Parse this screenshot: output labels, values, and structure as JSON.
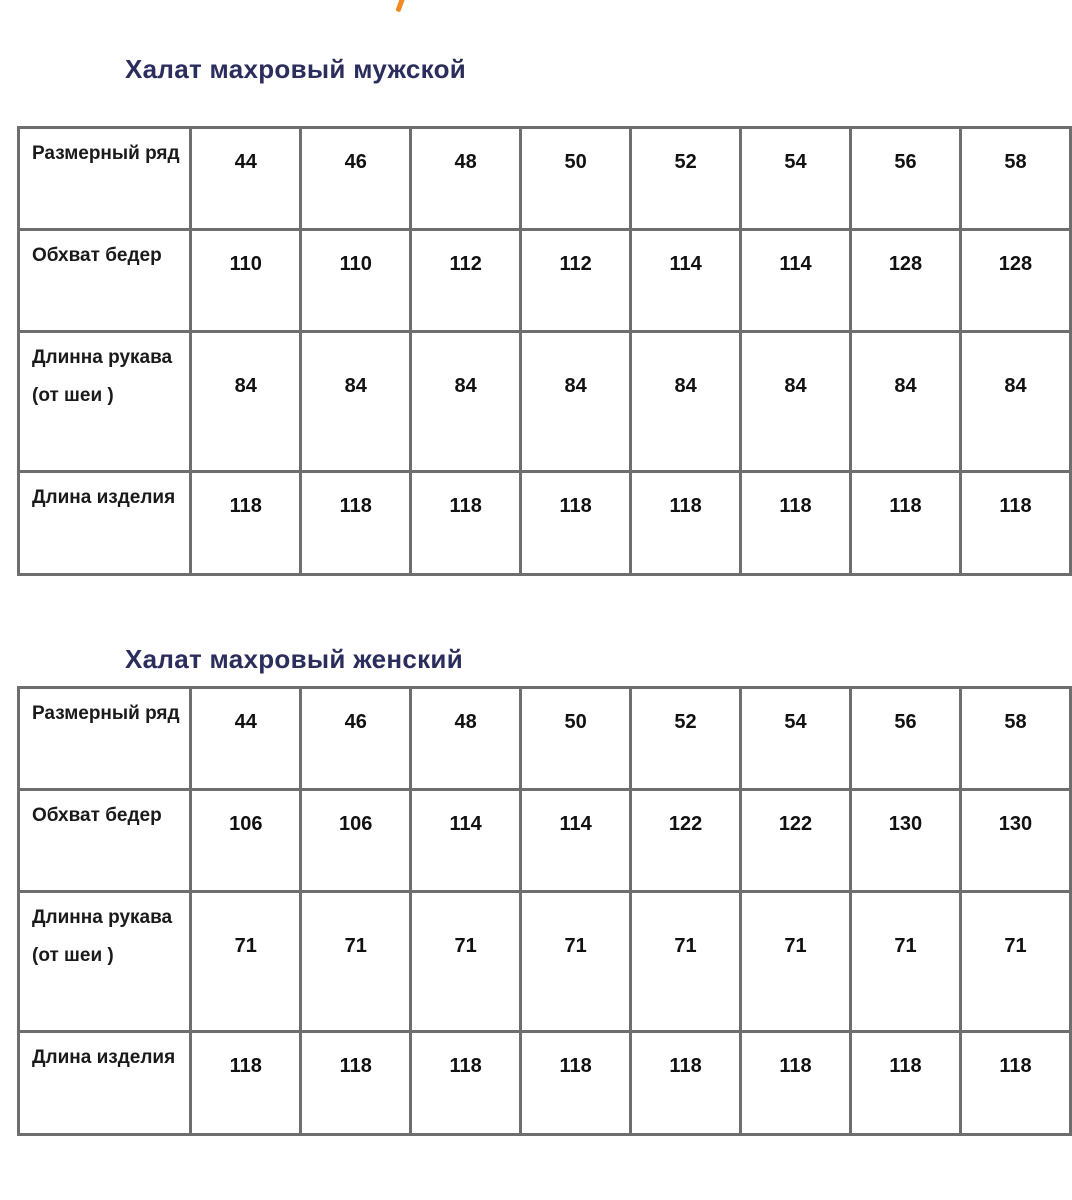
{
  "colors": {
    "title": "#2b2e5c",
    "accent": "#f08a24",
    "grid": "#6e6e6e"
  },
  "tables": [
    {
      "title": "Халат махровый мужской",
      "rows": [
        {
          "label": "Размерный ряд",
          "values": [
            "44",
            "46",
            "48",
            "50",
            "52",
            "54",
            "56",
            "58"
          ]
        },
        {
          "label": "Обхват бедер",
          "values": [
            "110",
            "110",
            "112",
            "112",
            "114",
            "114",
            "128",
            "128"
          ]
        },
        {
          "label": "Длинна рукава (от шеи )",
          "values": [
            "84",
            "84",
            "84",
            "84",
            "84",
            "84",
            "84",
            "84"
          ]
        },
        {
          "label": "Длина изделия",
          "values": [
            "118",
            "118",
            "118",
            "118",
            "118",
            "118",
            "118",
            "118"
          ]
        }
      ]
    },
    {
      "title": "Халат махровый женский",
      "rows": [
        {
          "label": "Размерный ряд",
          "values": [
            "44",
            "46",
            "48",
            "50",
            "52",
            "54",
            "56",
            "58"
          ]
        },
        {
          "label": "Обхват бедер",
          "values": [
            "106",
            "106",
            "114",
            "114",
            "122",
            "122",
            "130",
            "130"
          ]
        },
        {
          "label": "Длинна рукава (от шеи )",
          "values": [
            "71",
            "71",
            "71",
            "71",
            "71",
            "71",
            "71",
            "71"
          ]
        },
        {
          "label": "Длина изделия",
          "values": [
            "118",
            "118",
            "118",
            "118",
            "118",
            "118",
            "118",
            "118"
          ]
        }
      ]
    }
  ]
}
